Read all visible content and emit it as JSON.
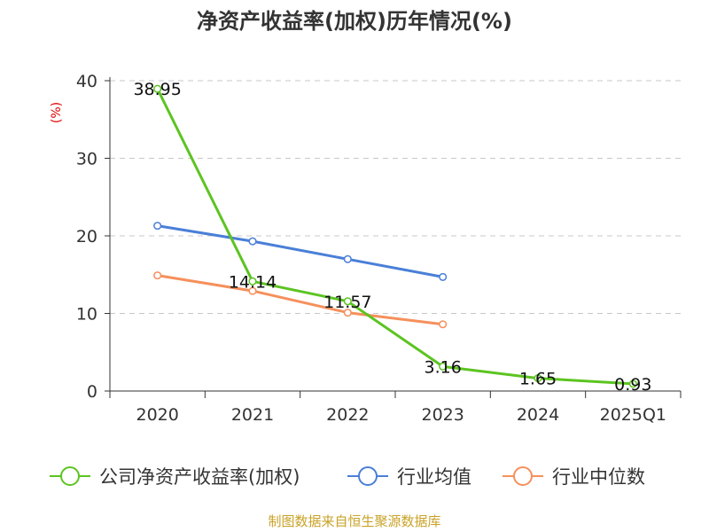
{
  "chart_data": {
    "type": "line",
    "title": "净资产收益率(加权)历年情况(%)",
    "unit_label": "(%)",
    "categories": [
      "2020",
      "2021",
      "2022",
      "2023",
      "2024",
      "2025Q1"
    ],
    "ylim": [
      0,
      40
    ],
    "yticks": [
      "0",
      "10",
      "20",
      "30",
      "40"
    ],
    "grid": "horizontal-dashed",
    "legend_position": "bottom",
    "series": [
      {
        "name": "公司净资产收益率(加权)",
        "color": "#5cc421",
        "values": [
          38.95,
          14.14,
          11.57,
          3.16,
          1.65,
          0.93
        ],
        "labels": [
          "38.95",
          "14.14",
          "11.57",
          "3.16",
          "1.65",
          "0.93"
        ]
      },
      {
        "name": "行业均值",
        "color": "#4a7fd8",
        "values": [
          21.3,
          19.3,
          17.0,
          14.7,
          null,
          null
        ]
      },
      {
        "name": "行业中位数",
        "color": "#f5905c",
        "values": [
          14.9,
          12.9,
          10.1,
          8.6,
          null,
          null
        ]
      }
    ],
    "source": "制图数据来自恒生聚源数据库"
  }
}
